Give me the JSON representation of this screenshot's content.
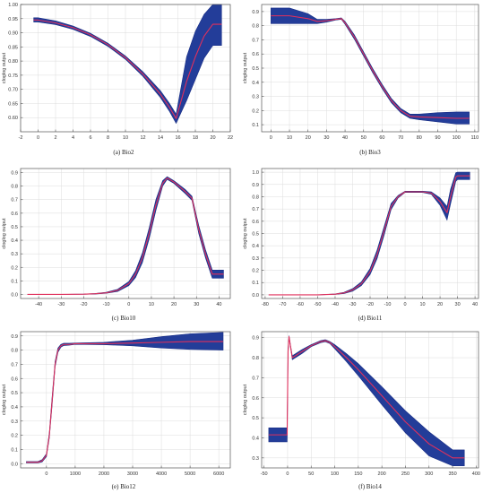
{
  "chart_data": [
    {
      "type": "area",
      "caption": "(a)  Bio2",
      "ylabel": "cloglog output",
      "xlim": [
        -2,
        22
      ],
      "ylim": [
        0.55,
        1.0
      ],
      "xticks": [
        -2,
        0,
        2,
        4,
        6,
        8,
        10,
        12,
        14,
        16,
        18,
        20,
        22
      ],
      "yticks": [
        0.6,
        0.65,
        0.7,
        0.75,
        0.8,
        0.85,
        0.9,
        0.95,
        1.0
      ],
      "ytick_decimals": 2,
      "series": [
        {
          "role": "mean",
          "x": [
            -0.5,
            0,
            2,
            4,
            6,
            8,
            10,
            12,
            14,
            15,
            15.8,
            17,
            18,
            19,
            20,
            21
          ],
          "y": [
            0.945,
            0.945,
            0.935,
            0.918,
            0.893,
            0.858,
            0.812,
            0.754,
            0.683,
            0.638,
            0.597,
            0.728,
            0.815,
            0.888,
            0.93,
            0.93
          ]
        },
        {
          "role": "upper",
          "x": [
            -0.5,
            0,
            2,
            4,
            6,
            8,
            10,
            12,
            14,
            15,
            15.8,
            17,
            18,
            19,
            20,
            21
          ],
          "y": [
            0.953,
            0.953,
            0.942,
            0.924,
            0.898,
            0.863,
            0.818,
            0.762,
            0.695,
            0.652,
            0.612,
            0.815,
            0.905,
            0.965,
            1.0,
            1.0
          ]
        },
        {
          "role": "lower",
          "x": [
            -0.5,
            0,
            2,
            4,
            6,
            8,
            10,
            12,
            14,
            15,
            15.8,
            17,
            18,
            19,
            20,
            21
          ],
          "y": [
            0.938,
            0.938,
            0.929,
            0.912,
            0.887,
            0.852,
            0.806,
            0.746,
            0.671,
            0.624,
            0.58,
            0.66,
            0.735,
            0.81,
            0.855,
            0.855
          ]
        }
      ]
    },
    {
      "type": "area",
      "caption": "(b)  Bio3",
      "ylabel": "cloglog output",
      "xlim": [
        -5,
        112
      ],
      "ylim": [
        0.05,
        0.95
      ],
      "xticks": [
        0,
        10,
        20,
        30,
        40,
        50,
        60,
        70,
        80,
        90,
        100,
        110
      ],
      "yticks": [
        0.1,
        0.2,
        0.3,
        0.4,
        0.5,
        0.6,
        0.7,
        0.8,
        0.9
      ],
      "ytick_decimals": 1,
      "series": [
        {
          "role": "mean",
          "x": [
            0,
            10,
            20,
            25,
            30,
            35,
            38,
            40,
            45,
            50,
            55,
            60,
            65,
            70,
            75,
            80,
            90,
            100,
            107
          ],
          "y": [
            0.87,
            0.87,
            0.85,
            0.83,
            0.835,
            0.845,
            0.85,
            0.82,
            0.72,
            0.6,
            0.48,
            0.37,
            0.27,
            0.2,
            0.16,
            0.155,
            0.15,
            0.145,
            0.145
          ]
        },
        {
          "role": "upper",
          "x": [
            0,
            10,
            20,
            25,
            30,
            35,
            38,
            40,
            45,
            50,
            55,
            60,
            65,
            70,
            75,
            80,
            90,
            100,
            107
          ],
          "y": [
            0.925,
            0.925,
            0.885,
            0.845,
            0.845,
            0.85,
            0.855,
            0.83,
            0.735,
            0.615,
            0.495,
            0.385,
            0.285,
            0.215,
            0.175,
            0.175,
            0.185,
            0.19,
            0.19
          ]
        },
        {
          "role": "lower",
          "x": [
            0,
            10,
            20,
            25,
            30,
            35,
            38,
            40,
            45,
            50,
            55,
            60,
            65,
            70,
            75,
            80,
            90,
            100,
            107
          ],
          "y": [
            0.815,
            0.815,
            0.815,
            0.815,
            0.825,
            0.84,
            0.845,
            0.81,
            0.705,
            0.585,
            0.465,
            0.355,
            0.255,
            0.185,
            0.145,
            0.135,
            0.12,
            0.105,
            0.105
          ]
        }
      ]
    },
    {
      "type": "area",
      "caption": "(c)  Bio10",
      "ylabel": "cloglog output",
      "xlim": [
        -48,
        45
      ],
      "ylim": [
        -0.03,
        0.93
      ],
      "xticks": [
        -40,
        -30,
        -20,
        -10,
        0,
        10,
        20,
        30,
        40
      ],
      "yticks": [
        0.0,
        0.1,
        0.2,
        0.3,
        0.4,
        0.5,
        0.6,
        0.7,
        0.8,
        0.9
      ],
      "ytick_decimals": 1,
      "series": [
        {
          "role": "mean",
          "x": [
            -45,
            -30,
            -20,
            -15,
            -10,
            -5,
            0,
            3,
            6,
            9,
            12,
            15,
            17,
            20,
            25,
            28,
            31,
            34,
            37,
            42
          ],
          "y": [
            0.0,
            0.0,
            0.002,
            0.005,
            0.012,
            0.03,
            0.08,
            0.15,
            0.27,
            0.45,
            0.66,
            0.82,
            0.86,
            0.83,
            0.76,
            0.71,
            0.48,
            0.3,
            0.15,
            0.15
          ]
        },
        {
          "role": "upper",
          "x": [
            -45,
            -30,
            -20,
            -15,
            -10,
            -5,
            0,
            3,
            6,
            9,
            12,
            15,
            17,
            20,
            25,
            28,
            31,
            34,
            37,
            42
          ],
          "y": [
            0.0,
            0.0,
            0.003,
            0.007,
            0.016,
            0.038,
            0.095,
            0.175,
            0.305,
            0.49,
            0.7,
            0.84,
            0.87,
            0.84,
            0.775,
            0.725,
            0.51,
            0.33,
            0.18,
            0.18
          ]
        },
        {
          "role": "lower",
          "x": [
            -45,
            -30,
            -20,
            -15,
            -10,
            -5,
            0,
            3,
            6,
            9,
            12,
            15,
            17,
            20,
            25,
            28,
            31,
            34,
            37,
            42
          ],
          "y": [
            0.0,
            0.0,
            0.001,
            0.003,
            0.008,
            0.022,
            0.065,
            0.125,
            0.235,
            0.41,
            0.62,
            0.8,
            0.85,
            0.82,
            0.745,
            0.695,
            0.45,
            0.27,
            0.12,
            0.12
          ]
        }
      ]
    },
    {
      "type": "area",
      "caption": "(d)  Bio11",
      "ylabel": "cloglog output",
      "xlim": [
        -82,
        42
      ],
      "ylim": [
        -0.03,
        1.03
      ],
      "xticks": [
        -80,
        -70,
        -60,
        -50,
        -40,
        -30,
        -20,
        -10,
        0,
        10,
        20,
        30,
        40
      ],
      "yticks": [
        0.0,
        0.1,
        0.2,
        0.3,
        0.4,
        0.5,
        0.6,
        0.7,
        0.8,
        0.9,
        1.0
      ],
      "ytick_decimals": 1,
      "series": [
        {
          "role": "mean",
          "x": [
            -78,
            -50,
            -40,
            -35,
            -30,
            -25,
            -20,
            -16,
            -12,
            -8,
            -4,
            0,
            5,
            10,
            15,
            20,
            24,
            26,
            29,
            30,
            32,
            37
          ],
          "y": [
            0.0,
            0.0,
            0.005,
            0.015,
            0.04,
            0.09,
            0.19,
            0.33,
            0.52,
            0.72,
            0.8,
            0.84,
            0.84,
            0.84,
            0.83,
            0.76,
            0.67,
            0.8,
            0.96,
            0.97,
            0.97,
            0.97
          ]
        },
        {
          "role": "upper",
          "x": [
            -78,
            -50,
            -40,
            -35,
            -30,
            -25,
            -20,
            -16,
            -12,
            -8,
            -4,
            0,
            5,
            10,
            15,
            20,
            24,
            26,
            29,
            30,
            32,
            37
          ],
          "y": [
            0.0,
            0.0,
            0.007,
            0.02,
            0.05,
            0.105,
            0.215,
            0.365,
            0.555,
            0.745,
            0.81,
            0.845,
            0.845,
            0.845,
            0.84,
            0.79,
            0.72,
            0.86,
            0.995,
            1.0,
            1.0,
            1.0
          ]
        },
        {
          "role": "lower",
          "x": [
            -78,
            -50,
            -40,
            -35,
            -30,
            -25,
            -20,
            -16,
            -12,
            -8,
            -4,
            0,
            5,
            10,
            15,
            20,
            24,
            26,
            29,
            30,
            32,
            37
          ],
          "y": [
            0.0,
            0.0,
            0.003,
            0.01,
            0.03,
            0.075,
            0.165,
            0.295,
            0.485,
            0.695,
            0.79,
            0.835,
            0.835,
            0.835,
            0.82,
            0.73,
            0.61,
            0.74,
            0.925,
            0.94,
            0.94,
            0.94
          ]
        }
      ]
    },
    {
      "type": "area",
      "caption": "(e)  Bio12",
      "ylabel": "cloglog output",
      "xlim": [
        -900,
        6400
      ],
      "ylim": [
        -0.03,
        0.93
      ],
      "xticks": [
        0,
        1000,
        2000,
        3000,
        4000,
        5000,
        6000
      ],
      "yticks": [
        0.0,
        0.1,
        0.2,
        0.3,
        0.4,
        0.5,
        0.6,
        0.7,
        0.8,
        0.9
      ],
      "ytick_decimals": 1,
      "series": [
        {
          "role": "mean",
          "x": [
            -700,
            -300,
            -150,
            0,
            100,
            200,
            300,
            400,
            500,
            600,
            800,
            1000,
            2000,
            3000,
            4000,
            5000,
            6150
          ],
          "y": [
            0.01,
            0.01,
            0.02,
            0.06,
            0.2,
            0.45,
            0.7,
            0.8,
            0.83,
            0.84,
            0.84,
            0.845,
            0.845,
            0.85,
            0.855,
            0.86,
            0.86
          ]
        },
        {
          "role": "upper",
          "x": [
            -700,
            -300,
            -150,
            0,
            100,
            200,
            300,
            400,
            500,
            600,
            800,
            1000,
            2000,
            3000,
            4000,
            5000,
            6150
          ],
          "y": [
            0.015,
            0.015,
            0.028,
            0.07,
            0.22,
            0.48,
            0.72,
            0.815,
            0.84,
            0.848,
            0.848,
            0.85,
            0.855,
            0.87,
            0.895,
            0.915,
            0.925
          ]
        },
        {
          "role": "lower",
          "x": [
            -700,
            -300,
            -150,
            0,
            100,
            200,
            300,
            400,
            500,
            600,
            800,
            1000,
            2000,
            3000,
            4000,
            5000,
            6150
          ],
          "y": [
            0.005,
            0.005,
            0.012,
            0.05,
            0.18,
            0.42,
            0.68,
            0.785,
            0.82,
            0.832,
            0.835,
            0.84,
            0.838,
            0.83,
            0.815,
            0.805,
            0.8
          ]
        }
      ]
    },
    {
      "type": "area",
      "caption": "(f)  Bio14",
      "ylabel": "cloglog output",
      "xlim": [
        -55,
        405
      ],
      "ylim": [
        0.25,
        0.93
      ],
      "xticks": [
        -50,
        0,
        50,
        100,
        150,
        200,
        250,
        300,
        350,
        400
      ],
      "yticks": [
        0.3,
        0.4,
        0.5,
        0.6,
        0.7,
        0.8,
        0.9
      ],
      "ytick_decimals": 1,
      "series": [
        {
          "role": "mean",
          "x": [
            -40,
            -30,
            -20,
            -10,
            -5,
            -1,
            1,
            3,
            6,
            10,
            30,
            50,
            70,
            80,
            90,
            100,
            125,
            150,
            200,
            250,
            300,
            350,
            375
          ],
          "y": [
            0.415,
            0.415,
            0.415,
            0.415,
            0.415,
            0.415,
            0.83,
            0.905,
            0.86,
            0.8,
            0.83,
            0.86,
            0.88,
            0.885,
            0.875,
            0.855,
            0.8,
            0.74,
            0.61,
            0.48,
            0.37,
            0.3,
            0.3
          ]
        },
        {
          "role": "upper",
          "x": [
            -40,
            -30,
            -20,
            -10,
            -5,
            -1,
            1,
            3,
            6,
            10,
            30,
            50,
            70,
            80,
            90,
            100,
            125,
            150,
            200,
            250,
            300,
            350,
            375
          ],
          "y": [
            0.45,
            0.45,
            0.45,
            0.45,
            0.45,
            0.45,
            0.84,
            0.91,
            0.865,
            0.81,
            0.84,
            0.865,
            0.885,
            0.89,
            0.88,
            0.865,
            0.82,
            0.77,
            0.655,
            0.535,
            0.43,
            0.34,
            0.34
          ]
        },
        {
          "role": "lower",
          "x": [
            -40,
            -30,
            -20,
            -10,
            -5,
            -1,
            1,
            3,
            6,
            10,
            30,
            50,
            70,
            80,
            90,
            100,
            125,
            150,
            200,
            250,
            300,
            350,
            375
          ],
          "y": [
            0.38,
            0.38,
            0.38,
            0.38,
            0.38,
            0.38,
            0.82,
            0.9,
            0.855,
            0.79,
            0.82,
            0.855,
            0.875,
            0.88,
            0.87,
            0.845,
            0.78,
            0.71,
            0.565,
            0.425,
            0.31,
            0.26,
            0.26
          ]
        }
      ]
    }
  ],
  "colors": {
    "band": "#233d99",
    "band_edge": "#1a2f86",
    "mean_line": "#e0305c",
    "axis": "#555555",
    "grid": "#dcdcdc"
  }
}
